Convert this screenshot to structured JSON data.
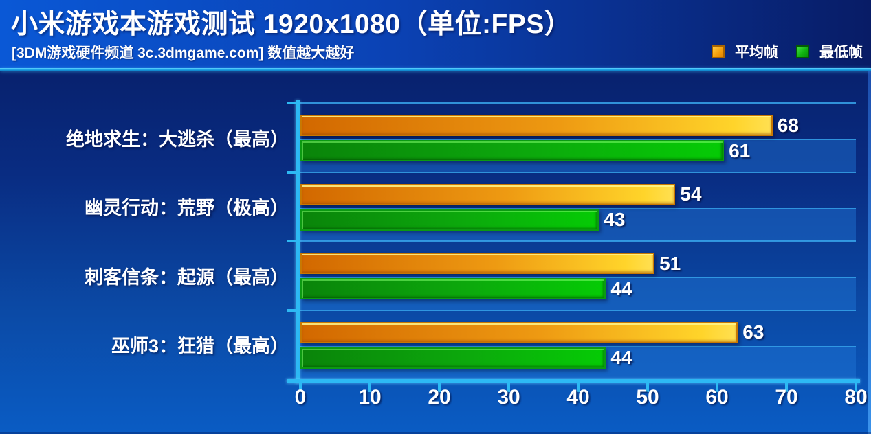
{
  "header": {
    "title": "小米游戏本游戏测试 1920x1080（单位:FPS）",
    "subtitle": "[3DM游戏硬件频道 3c.3dmgame.com] 数值越大越好"
  },
  "chart_data": {
    "type": "bar",
    "orientation": "horizontal",
    "title": "小米游戏本游戏测试 1920x1080（单位:FPS）",
    "subtitle": "[3DM游戏硬件频道 3c.3dmgame.com] 数值越大越好",
    "note": "数值越大越好",
    "unit": "FPS",
    "categories": [
      "绝地求生：大逃杀（最高）",
      "幽灵行动：荒野（极高）",
      "刺客信条：起源（最高）",
      "巫师3：狂猎（最高）"
    ],
    "series": [
      {
        "name": "平均帧",
        "color": "#F5A00C",
        "values": [
          68,
          54,
          51,
          63
        ]
      },
      {
        "name": "最低帧",
        "color": "#0CB40C",
        "values": [
          61,
          43,
          44,
          44
        ]
      }
    ],
    "xlim": [
      0,
      80
    ],
    "xticks": [
      0,
      10,
      20,
      30,
      40,
      50,
      60,
      70,
      80
    ],
    "legend_position": "top-right",
    "grid": "category-separator-lines",
    "xlabel": "",
    "ylabel": ""
  },
  "colors": {
    "header_gradient_left": "#0A58D6",
    "header_gradient_right": "#081C66",
    "background_top": "#071A60",
    "background_bottom": "#0A5CC4",
    "axis_cyan": "#2DB9F4",
    "bar_average_start": "#D26800",
    "bar_average_end": "#FFE052",
    "bar_minimum_start": "#0A840A",
    "bar_minimum_end": "#05CB05",
    "label_text": "#FFFFFF"
  }
}
